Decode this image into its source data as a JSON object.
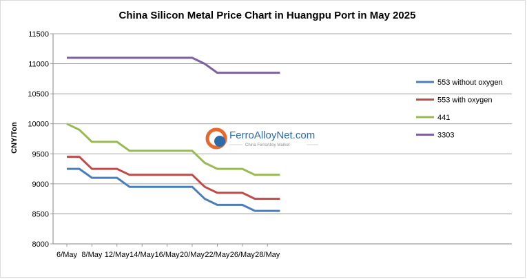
{
  "chart_data": {
    "type": "line",
    "title": "China Silicon Metal Price Chart in Huangpu Port in May 2025",
    "xlabel": "",
    "ylabel": "CNY/Ton",
    "ylim": [
      8000,
      11500
    ],
    "yticks": [
      8000,
      8500,
      9000,
      9500,
      10000,
      10500,
      11000,
      11500
    ],
    "xticks": [
      "6/May",
      "8/May",
      "12/May",
      "14/May",
      "16/May",
      "20/May",
      "22/May",
      "26/May",
      "28/May"
    ],
    "x": [
      "6/May",
      "7/May",
      "8/May",
      "9/May",
      "12/May",
      "13/May",
      "14/May",
      "15/May",
      "16/May",
      "19/May",
      "20/May",
      "21/May",
      "22/May",
      "23/May",
      "26/May",
      "27/May",
      "28/May",
      "29/May"
    ],
    "grid": true,
    "legend_position": "right",
    "series": [
      {
        "name": "553 without oxygen",
        "color": "#4a7ebb",
        "values": [
          9250,
          9250,
          9100,
          9100,
          9100,
          8950,
          8950,
          8950,
          8950,
          8950,
          8950,
          8750,
          8650,
          8650,
          8650,
          8550,
          8550,
          8550
        ]
      },
      {
        "name": "553 with oxygen",
        "color": "#be4b48",
        "values": [
          9450,
          9450,
          9250,
          9250,
          9250,
          9150,
          9150,
          9150,
          9150,
          9150,
          9150,
          8950,
          8850,
          8850,
          8850,
          8750,
          8750,
          8750
        ]
      },
      {
        "name": "441",
        "color": "#98b954",
        "values": [
          10000,
          9900,
          9700,
          9700,
          9700,
          9550,
          9550,
          9550,
          9550,
          9550,
          9550,
          9350,
          9250,
          9250,
          9250,
          9150,
          9150,
          9150
        ]
      },
      {
        "name": "3303",
        "color": "#7d60a0",
        "values": [
          11100,
          11100,
          11100,
          11100,
          11100,
          11100,
          11100,
          11100,
          11100,
          11100,
          11100,
          11000,
          10850,
          10850,
          10850,
          10850,
          10850,
          10850
        ]
      }
    ]
  },
  "watermark": {
    "name": "FerroAlloyNet.com",
    "tagline": "China FerroAlloy Market"
  }
}
